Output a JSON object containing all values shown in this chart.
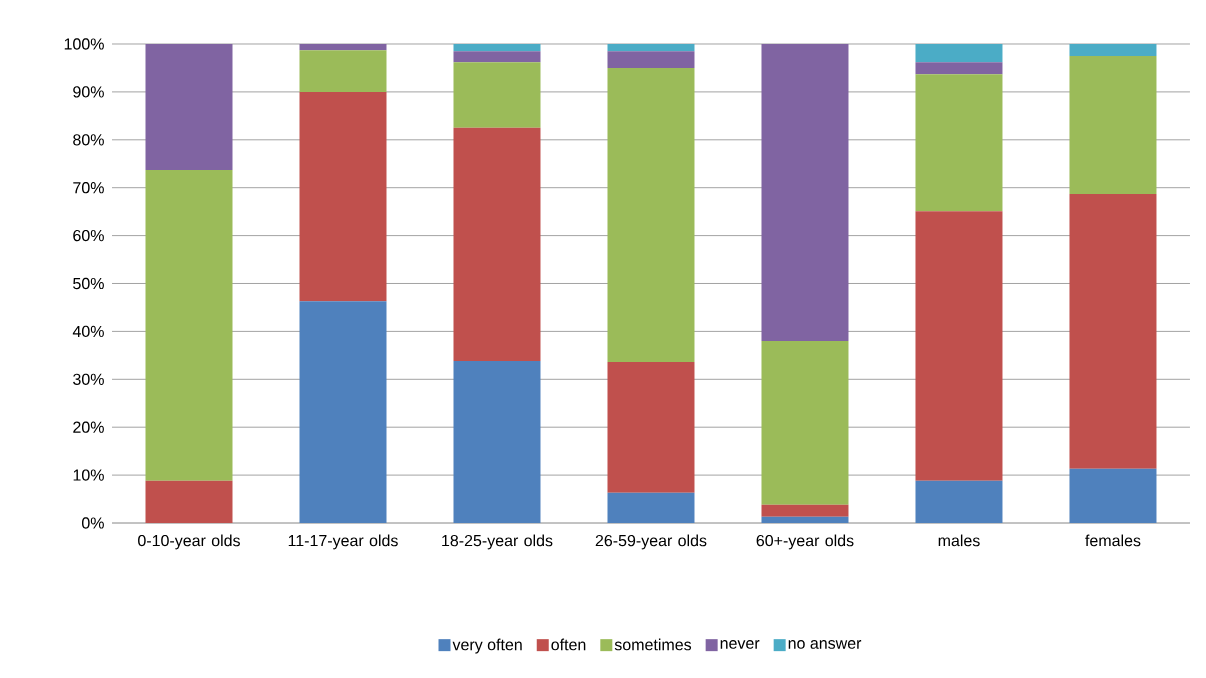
{
  "chart_data": {
    "type": "bar",
    "stacked": true,
    "categories": [
      "0-10-year olds",
      "11-17-year olds",
      "18-25-year olds",
      "26-59-year olds",
      "60+-year olds",
      "males",
      "females"
    ],
    "series": [
      {
        "name": "very often",
        "color": "#4f81bd",
        "values": [
          0,
          46.3,
          33.8,
          6.3,
          1.3,
          8.8,
          11.3
        ]
      },
      {
        "name": "often",
        "color": "#c0504d",
        "values": [
          8.8,
          43.7,
          48.7,
          27.3,
          2.5,
          56.3,
          57.4
        ]
      },
      {
        "name": "sometimes",
        "color": "#9bbb59",
        "values": [
          64.9,
          8.7,
          13.7,
          61.4,
          34.2,
          28.6,
          28.8
        ]
      },
      {
        "name": "never",
        "color": "#8064a2",
        "values": [
          26.3,
          1.3,
          2.3,
          3.5,
          62.0,
          2.5,
          0
        ]
      },
      {
        "name": "no answer",
        "color": "#4bacc6",
        "values": [
          0,
          0,
          1.5,
          1.5,
          0,
          3.8,
          2.5
        ]
      }
    ],
    "ylim": [
      0,
      100
    ],
    "yticks": [
      {
        "value": 0,
        "label": "0%"
      },
      {
        "value": 10,
        "label": "10%"
      },
      {
        "value": 20,
        "label": "20%"
      },
      {
        "value": 30,
        "label": "30%"
      },
      {
        "value": 40,
        "label": "40%"
      },
      {
        "value": 50,
        "label": "50%"
      },
      {
        "value": 60,
        "label": "60%"
      },
      {
        "value": 70,
        "label": "70%"
      },
      {
        "value": 80,
        "label": "80%"
      },
      {
        "value": 90,
        "label": "90%"
      },
      {
        "value": 100,
        "label": "100%"
      }
    ],
    "grid": "y",
    "legend": "bottom"
  }
}
